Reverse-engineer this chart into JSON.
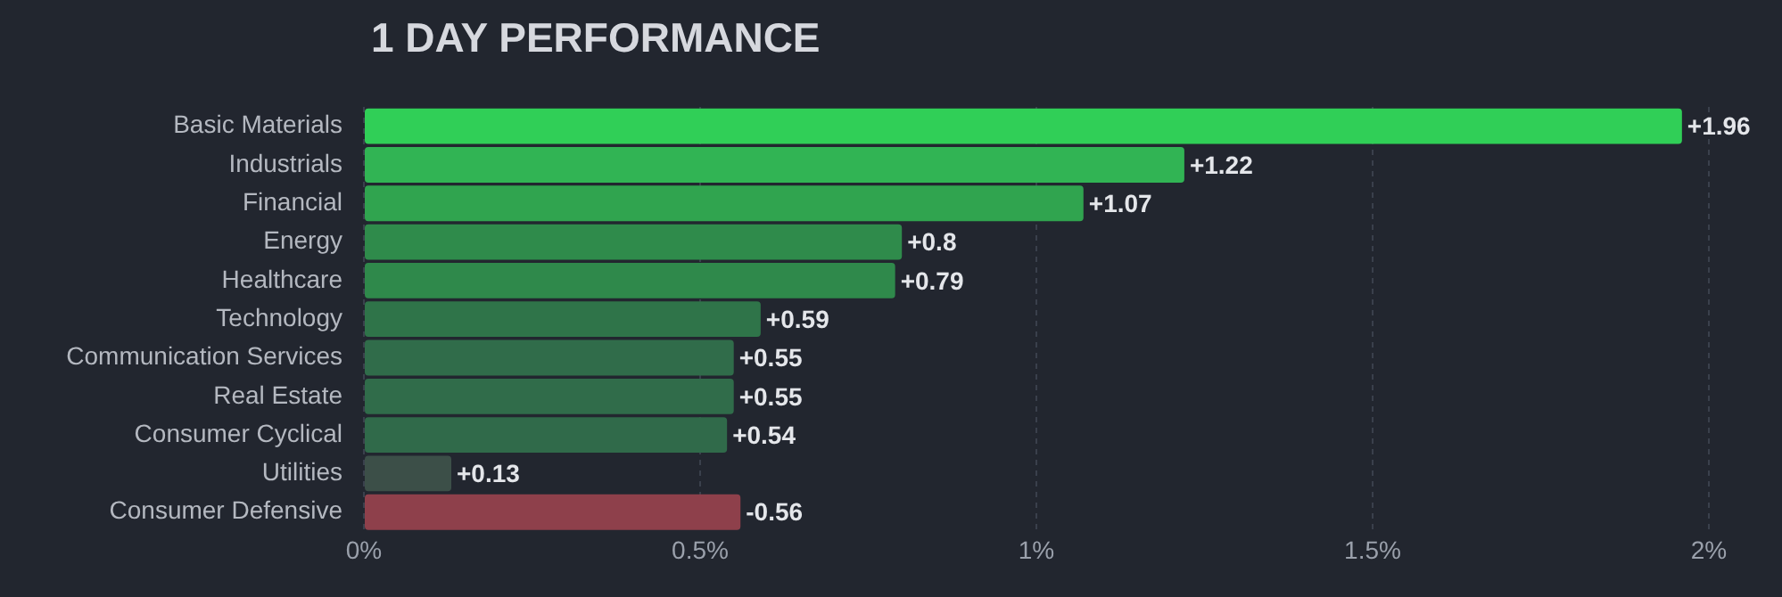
{
  "chart_data": {
    "type": "bar",
    "orientation": "horizontal",
    "title": "1 DAY PERFORMANCE",
    "categories": [
      "Basic Materials",
      "Industrials",
      "Financial",
      "Energy",
      "Healthcare",
      "Technology",
      "Communication Services",
      "Real Estate",
      "Consumer Cyclical",
      "Utilities",
      "Consumer Defensive"
    ],
    "values": [
      1.96,
      1.22,
      1.07,
      0.8,
      0.79,
      0.59,
      0.55,
      0.55,
      0.54,
      0.13,
      -0.56
    ],
    "base": [
      0,
      0,
      0,
      0,
      0,
      0,
      0,
      0,
      0,
      0,
      0.56
    ],
    "value_labels": [
      "+1.96",
      "+1.22",
      "+1.07",
      "+0.8",
      "+0.79",
      "+0.59",
      "+0.55",
      "+0.55",
      "+0.54",
      "+0.13",
      "-0.56"
    ],
    "colors": [
      "#30cf57",
      "#31b454",
      "#30a44f",
      "#2f8b4b",
      "#2f894b",
      "#2f7449",
      "#306c4a",
      "#306c4a",
      "#306a4a",
      "#3c4f48",
      "#8e404b"
    ],
    "xlim": [
      0,
      2
    ],
    "xticks": [
      {
        "value": 0,
        "label": "0%"
      },
      {
        "value": 0.5,
        "label": "0.5%"
      },
      {
        "value": 1,
        "label": "1%"
      },
      {
        "value": 1.5,
        "label": "1.5%"
      },
      {
        "value": 2,
        "label": "2%"
      }
    ],
    "grid": "x",
    "legend": false
  }
}
